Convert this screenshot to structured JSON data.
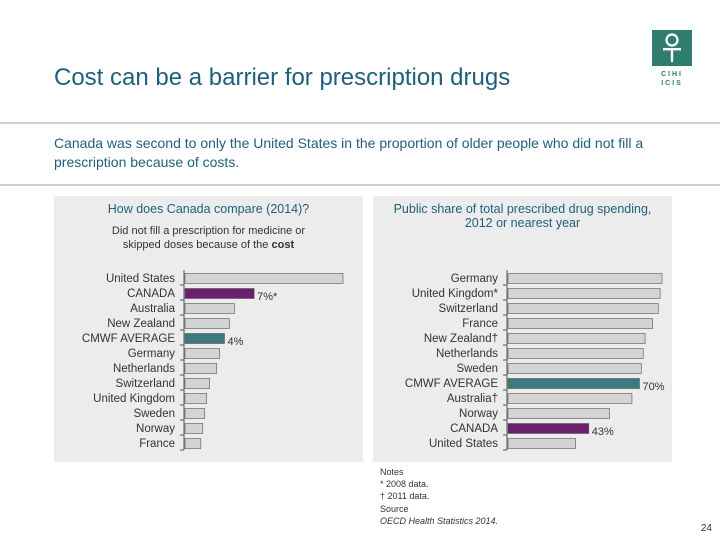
{
  "title": "Cost can be a barrier for prescription drugs",
  "logo": {
    "line1": "CIHI",
    "line2": "ICIS"
  },
  "subtitle": "Canada was second to only the United States in the proportion of older people who did not fill a prescription because of costs.",
  "colors": {
    "bar_default": "#d4d4d4",
    "highlight_canada": "#6b1f6e",
    "highlight_average": "#3d7a80",
    "title": "#1f5f7a"
  },
  "chart_data": [
    {
      "type": "bar",
      "orientation": "horizontal",
      "title": "How does Canada compare (2014)?",
      "subtitle_start": "Did not fill a prescription for medicine or skipped doses because of the ",
      "subtitle_emphasis": "cost",
      "categories": [
        "United States",
        "CANADA",
        "Australia",
        "New Zealand",
        "CMWF AVERAGE",
        "Germany",
        "Netherlands",
        "Switzerland",
        "United Kingdom",
        "Sweden",
        "Norway",
        "France"
      ],
      "values": [
        16,
        7,
        5,
        4.5,
        4,
        3.5,
        3.2,
        2.5,
        2.2,
        2,
        1.8,
        1.6
      ],
      "data_labels": [
        "",
        "7%*",
        "",
        "",
        "4%",
        "",
        "",
        "",
        "",
        "",
        "",
        ""
      ],
      "highlights": {
        "CANADA": "canada",
        "CMWF AVERAGE": "average"
      },
      "xlim": [
        0,
        16
      ]
    },
    {
      "type": "bar",
      "orientation": "horizontal",
      "title": "Public share of total prescribed drug spending, 2012 or nearest year",
      "categories": [
        "Germany",
        "United Kingdom*",
        "Switzerland",
        "France",
        "New Zealand†",
        "Netherlands",
        "Sweden",
        "CMWF AVERAGE",
        "Australia†",
        "Norway",
        "CANADA",
        "United States"
      ],
      "values": [
        82,
        81,
        80,
        77,
        73,
        72,
        71,
        70,
        66,
        54,
        43,
        36
      ],
      "data_labels": [
        "",
        "",
        "",
        "",
        "",
        "",
        "",
        "70%",
        "",
        "",
        "43%",
        ""
      ],
      "highlights": {
        "CANADA": "canada",
        "CMWF AVERAGE": "average"
      },
      "xlim": [
        0,
        82
      ]
    }
  ],
  "notes": {
    "heading": "Notes",
    "lines": [
      "* 2008 data.",
      "† 2011 data."
    ],
    "source_heading": "Source",
    "source": "OECD Health Statistics 2014."
  },
  "page_number": "24"
}
